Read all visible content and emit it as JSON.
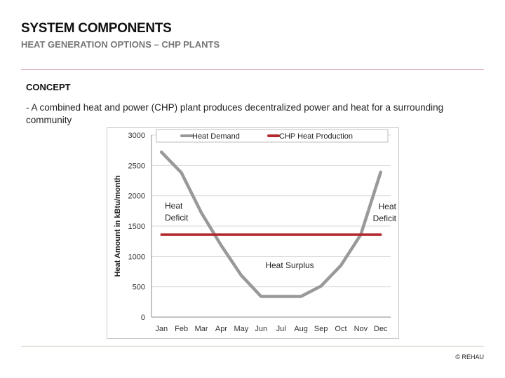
{
  "header": {
    "title": "SYSTEM COMPONENTS",
    "subtitle": "HEAT GENERATION OPTIONS – CHP PLANTS"
  },
  "section": {
    "label": "CONCEPT",
    "bullet": "-  A combined heat and power (CHP) plant produces decentralized power and heat for a surrounding community"
  },
  "chart_data": {
    "type": "line",
    "categories": [
      "Jan",
      "Feb",
      "Mar",
      "Apr",
      "May",
      "Jun",
      "Jul",
      "Aug",
      "Sep",
      "Oct",
      "Nov",
      "Dec"
    ],
    "series": [
      {
        "name": "Heat Demand",
        "color": "#999999",
        "values": [
          2720,
          2380,
          1720,
          1180,
          690,
          340,
          340,
          340,
          510,
          850,
          1360,
          2390
        ]
      },
      {
        "name": "CHP Heat Production",
        "color": "#b22a2e",
        "values": [
          1360,
          1360,
          1360,
          1360,
          1360,
          1360,
          1360,
          1360,
          1360,
          1360,
          1360,
          1360
        ]
      }
    ],
    "ylabel": "Heat Amount in kBtu/month",
    "xlabel": "",
    "ylim": [
      0,
      3000
    ],
    "yticks": [
      0,
      500,
      1000,
      1500,
      2000,
      2500,
      3000
    ],
    "grid": true,
    "legend": "top",
    "annotations": [
      {
        "text": "Heat\nDeficit",
        "month": "Jan"
      },
      {
        "text": "Heat Surplus",
        "month": "Jul"
      },
      {
        "text": "Heat\nDeficit",
        "month": "Dec"
      }
    ]
  },
  "footer": {
    "copyright": "© REHAU"
  }
}
